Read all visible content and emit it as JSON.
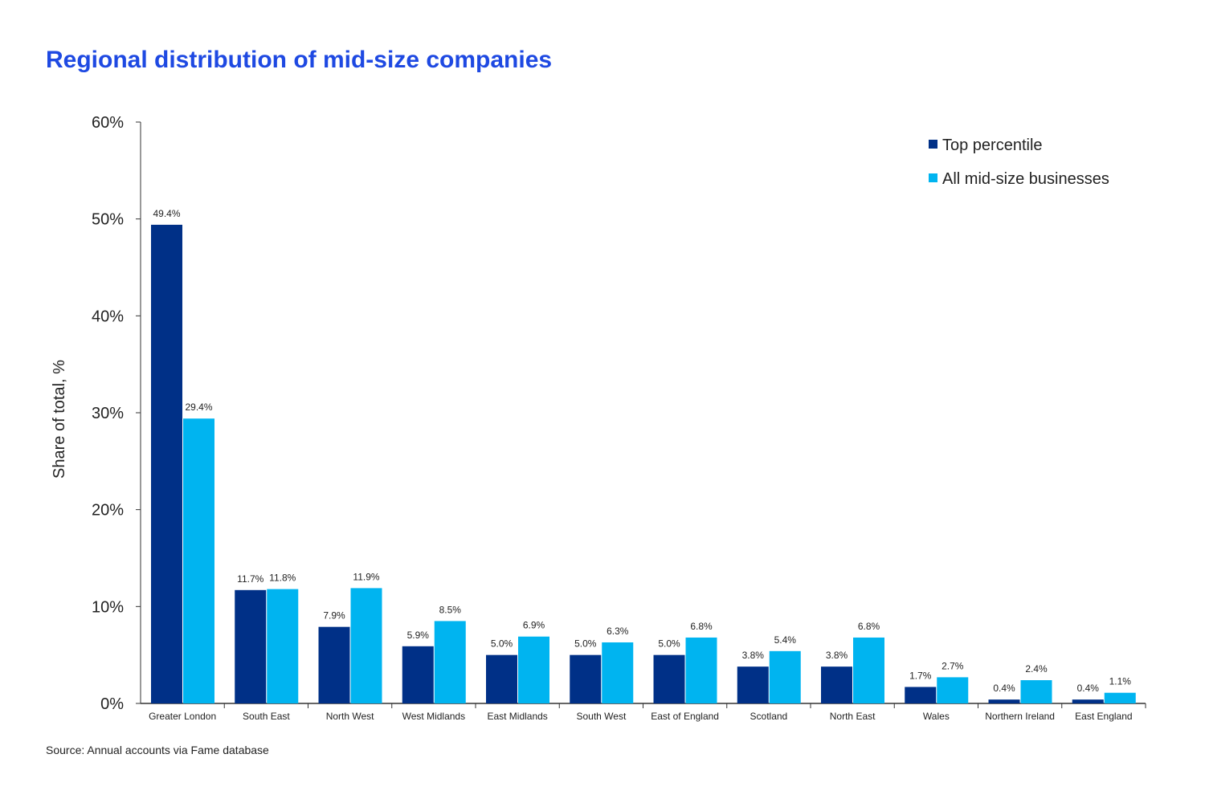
{
  "chart_data": {
    "type": "bar",
    "title": "Regional distribution of mid-size companies",
    "xlabel": "",
    "ylabel": "Share of total, %",
    "ylim": [
      0,
      60
    ],
    "yticks": [
      "0%",
      "10%",
      "20%",
      "30%",
      "40%",
      "50%",
      "60%"
    ],
    "grid": false,
    "legend_position": "top-right",
    "categories": [
      "Greater London",
      "South East",
      "North West",
      "West Midlands",
      "East Midlands",
      "South West",
      "East of England",
      "Scotland",
      "North East",
      "Wales",
      "Northern Ireland",
      "East England"
    ],
    "series": [
      {
        "name": "Top percentile",
        "color": "#003087",
        "values": [
          49.4,
          11.7,
          7.9,
          5.9,
          5.0,
          5.0,
          5.0,
          3.8,
          3.8,
          1.7,
          0.4,
          0.4
        ],
        "labels": [
          "49.4%",
          "11.7%",
          "7.9%",
          "5.9%",
          "5.0%",
          "5.0%",
          "5.0%",
          "3.8%",
          "3.8%",
          "1.7%",
          "0.4%",
          "0.4%"
        ]
      },
      {
        "name": "All mid-size businesses",
        "color": "#00b4f0",
        "values": [
          29.4,
          11.8,
          11.9,
          8.5,
          6.9,
          6.3,
          6.8,
          5.4,
          6.8,
          2.7,
          2.4,
          1.1
        ],
        "labels": [
          "29.4%",
          "11.8%",
          "11.9%",
          "8.5%",
          "6.9%",
          "6.3%",
          "6.8%",
          "5.4%",
          "6.8%",
          "2.7%",
          "2.4%",
          "1.1%"
        ]
      }
    ]
  },
  "source": "Source: Annual accounts via Fame database"
}
